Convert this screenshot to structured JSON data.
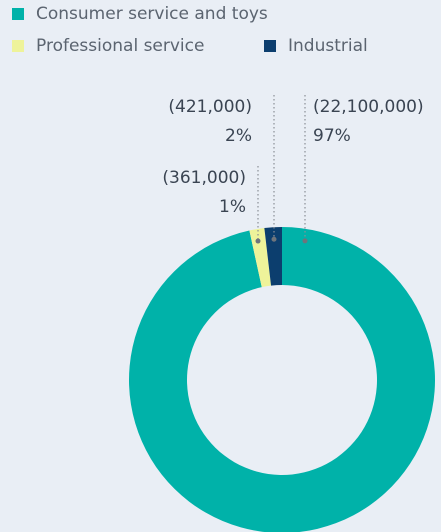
{
  "chart_data": {
    "type": "donut",
    "categories": [
      "Consumer service and toys",
      "Professional service",
      "Industrial"
    ],
    "values": [
      22100000,
      361000,
      421000
    ],
    "value_labels": [
      "(22,100,000)",
      "(361,000)",
      "(421,000)"
    ],
    "percent_labels": [
      "97%",
      "1%",
      "2%"
    ],
    "colors": [
      "#00b2a9",
      "#eef39a",
      "#0c3e6e"
    ],
    "legend": "top-left"
  }
}
